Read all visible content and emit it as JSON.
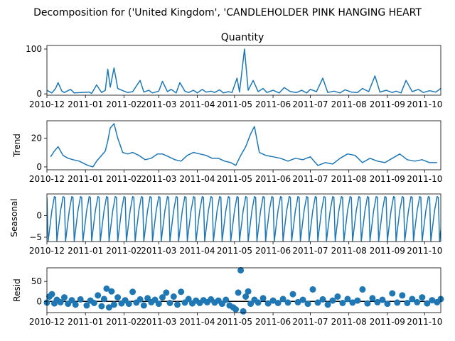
{
  "figure": {
    "suptitle": "Decomposition for ('United Kingdom', 'CANDLEHOLDER PINK HANGING HEART"
  },
  "colors": {
    "line": "#1f77b4",
    "marker": "#1f77b4",
    "zero_line": "#000000",
    "axes": "#000000",
    "background": "#ffffff"
  },
  "chart_data": [
    {
      "type": "line",
      "title": "Quantity",
      "ylabel": "",
      "x_tick_labels": [
        "2010-12",
        "2011-01",
        "2011-02",
        "2011-03",
        "2011-04",
        "2011-05",
        "2011-06",
        "2011-07",
        "2011-08",
        "2011-09",
        "2011-10"
      ],
      "x_range": [
        "2010-12-01",
        "2011-10-14"
      ],
      "ylim": [
        -3,
        108
      ],
      "y_ticks": [
        0,
        100
      ],
      "grid": false,
      "legend": "none",
      "x": [
        "2010-12-01",
        "2010-12-05",
        "2010-12-08",
        "2010-12-10",
        "2010-12-13",
        "2010-12-15",
        "2010-12-20",
        "2010-12-23",
        "2011-01-04",
        "2011-01-06",
        "2011-01-10",
        "2011-01-14",
        "2011-01-17",
        "2011-01-19",
        "2011-01-21",
        "2011-01-24",
        "2011-01-27",
        "2011-02-01",
        "2011-02-04",
        "2011-02-08",
        "2011-02-14",
        "2011-02-17",
        "2011-02-21",
        "2011-02-24",
        "2011-03-01",
        "2011-03-04",
        "2011-03-08",
        "2011-03-11",
        "2011-03-15",
        "2011-03-18",
        "2011-03-22",
        "2011-03-25",
        "2011-03-29",
        "2011-04-01",
        "2011-04-05",
        "2011-04-08",
        "2011-04-12",
        "2011-04-15",
        "2011-04-19",
        "2011-04-22",
        "2011-04-26",
        "2011-04-29",
        "2011-05-03",
        "2011-05-05",
        "2011-05-09",
        "2011-05-12",
        "2011-05-16",
        "2011-05-20",
        "2011-05-24",
        "2011-05-27",
        "2011-06-01",
        "2011-06-06",
        "2011-06-10",
        "2011-06-15",
        "2011-06-20",
        "2011-06-24",
        "2011-06-28",
        "2011-07-01",
        "2011-07-06",
        "2011-07-11",
        "2011-07-15",
        "2011-07-20",
        "2011-07-25",
        "2011-07-29",
        "2011-08-03",
        "2011-08-08",
        "2011-08-12",
        "2011-08-17",
        "2011-08-22",
        "2011-08-26",
        "2011-08-31",
        "2011-09-05",
        "2011-09-08",
        "2011-09-12",
        "2011-09-16",
        "2011-09-21",
        "2011-09-26",
        "2011-09-30",
        "2011-10-05",
        "2011-10-10",
        "2011-10-14"
      ],
      "values": [
        8,
        2,
        12,
        25,
        6,
        3,
        10,
        2,
        4,
        1,
        20,
        3,
        8,
        55,
        15,
        58,
        12,
        6,
        3,
        5,
        30,
        4,
        8,
        2,
        6,
        28,
        5,
        10,
        2,
        25,
        6,
        3,
        8,
        2,
        10,
        4,
        6,
        3,
        9,
        2,
        5,
        3,
        35,
        4,
        100,
        8,
        30,
        5,
        12,
        3,
        8,
        2,
        14,
        5,
        3,
        8,
        2,
        10,
        5,
        35,
        3,
        6,
        2,
        9,
        4,
        3,
        12,
        5,
        40,
        4,
        8,
        3,
        6,
        2,
        30,
        5,
        10,
        3,
        7,
        4,
        12
      ]
    },
    {
      "type": "line",
      "title": "",
      "ylabel": "Trend",
      "x_tick_labels": [
        "2010-12",
        "2011-01",
        "2011-02",
        "2011-03",
        "2011-04",
        "2011-05",
        "2011-06",
        "2011-07",
        "2011-08",
        "2011-09",
        "2011-10"
      ],
      "x_range": [
        "2010-12-01",
        "2011-10-14"
      ],
      "ylim": [
        -2,
        32
      ],
      "y_ticks": [
        0,
        20
      ],
      "grid": false,
      "legend": "none",
      "x": [
        "2010-12-04",
        "2010-12-07",
        "2010-12-10",
        "2010-12-14",
        "2010-12-18",
        "2010-12-22",
        "2010-12-27",
        "2011-01-03",
        "2011-01-07",
        "2011-01-10",
        "2011-01-14",
        "2011-01-17",
        "2011-01-19",
        "2011-01-21",
        "2011-01-24",
        "2011-01-27",
        "2011-01-31",
        "2011-02-04",
        "2011-02-08",
        "2011-02-13",
        "2011-02-18",
        "2011-02-23",
        "2011-02-28",
        "2011-03-04",
        "2011-03-09",
        "2011-03-14",
        "2011-03-19",
        "2011-03-24",
        "2011-03-29",
        "2011-04-03",
        "2011-04-08",
        "2011-04-13",
        "2011-04-18",
        "2011-04-23",
        "2011-04-28",
        "2011-05-02",
        "2011-05-06",
        "2011-05-10",
        "2011-05-14",
        "2011-05-17",
        "2011-05-21",
        "2011-05-26",
        "2011-06-01",
        "2011-06-07",
        "2011-06-13",
        "2011-06-19",
        "2011-06-25",
        "2011-07-01",
        "2011-07-07",
        "2011-07-13",
        "2011-07-19",
        "2011-07-25",
        "2011-07-31",
        "2011-08-06",
        "2011-08-12",
        "2011-08-18",
        "2011-08-24",
        "2011-08-30",
        "2011-09-05",
        "2011-09-11",
        "2011-09-17",
        "2011-09-23",
        "2011-09-29",
        "2011-10-05",
        "2011-10-11"
      ],
      "values": [
        7,
        11,
        14,
        8,
        6,
        5,
        4,
        1,
        0,
        4,
        8,
        11,
        18,
        27,
        30,
        20,
        10,
        9,
        10,
        8,
        5,
        6,
        9,
        9,
        7,
        5,
        4,
        8,
        10,
        9,
        8,
        6,
        6,
        4,
        3,
        1,
        8,
        14,
        23,
        28,
        10,
        8,
        7,
        6,
        4,
        6,
        5,
        7,
        1,
        3,
        2,
        6,
        9,
        8,
        3,
        6,
        4,
        3,
        6,
        9,
        5,
        4,
        5,
        3,
        3
      ]
    },
    {
      "type": "line",
      "title": "",
      "ylabel": "Seasonal",
      "x_tick_labels": [
        "2010-12",
        "2011-01",
        "2011-02",
        "2011-03",
        "2011-04",
        "2011-05",
        "2011-06",
        "2011-07",
        "2011-08",
        "2011-09",
        "2011-10"
      ],
      "x_range": [
        "2010-12-01",
        "2011-10-14"
      ],
      "ylim": [
        -6,
        5
      ],
      "y_ticks": [
        -5,
        0
      ],
      "grid": false,
      "legend": "none",
      "period_days": 7,
      "cycle_pattern": [
        4.2,
        -5.9,
        -3.5,
        -1.2,
        1.2,
        2.7,
        4.4
      ],
      "num_cycles": 46
    },
    {
      "type": "scatter",
      "title": "",
      "ylabel": "Resid",
      "x_tick_labels": [
        "2010-12",
        "2011-01",
        "2011-02",
        "2011-03",
        "2011-04",
        "2011-05",
        "2011-06",
        "2011-07",
        "2011-08",
        "2011-09",
        "2011-10"
      ],
      "x_range": [
        "2010-12-01",
        "2011-10-14"
      ],
      "ylim": [
        -28,
        84
      ],
      "y_ticks": [
        0,
        50
      ],
      "grid": false,
      "legend": "none",
      "zero_line": true,
      "x": [
        "2010-12-01",
        "2010-12-03",
        "2010-12-05",
        "2010-12-07",
        "2010-12-09",
        "2010-12-12",
        "2010-12-15",
        "2010-12-18",
        "2010-12-21",
        "2010-12-24",
        "2010-12-28",
        "2011-01-02",
        "2011-01-05",
        "2011-01-08",
        "2011-01-11",
        "2011-01-14",
        "2011-01-16",
        "2011-01-18",
        "2011-01-20",
        "2011-01-22",
        "2011-01-24",
        "2011-01-27",
        "2011-01-30",
        "2011-02-02",
        "2011-02-05",
        "2011-02-08",
        "2011-02-11",
        "2011-02-14",
        "2011-02-17",
        "2011-02-20",
        "2011-02-23",
        "2011-02-26",
        "2011-03-01",
        "2011-03-04",
        "2011-03-07",
        "2011-03-10",
        "2011-03-13",
        "2011-03-16",
        "2011-03-19",
        "2011-03-22",
        "2011-03-25",
        "2011-03-28",
        "2011-03-31",
        "2011-04-03",
        "2011-04-06",
        "2011-04-09",
        "2011-04-12",
        "2011-04-15",
        "2011-04-18",
        "2011-04-21",
        "2011-04-24",
        "2011-04-27",
        "2011-04-30",
        "2011-05-02",
        "2011-05-04",
        "2011-05-06",
        "2011-05-08",
        "2011-05-10",
        "2011-05-12",
        "2011-05-14",
        "2011-05-17",
        "2011-05-20",
        "2011-05-24",
        "2011-05-28",
        "2011-06-01",
        "2011-06-05",
        "2011-06-09",
        "2011-06-13",
        "2011-06-17",
        "2011-06-21",
        "2011-06-25",
        "2011-06-29",
        "2011-07-03",
        "2011-07-07",
        "2011-07-11",
        "2011-07-15",
        "2011-07-19",
        "2011-07-23",
        "2011-07-27",
        "2011-07-31",
        "2011-08-04",
        "2011-08-08",
        "2011-08-12",
        "2011-08-16",
        "2011-08-20",
        "2011-08-24",
        "2011-08-28",
        "2011-09-01",
        "2011-09-05",
        "2011-09-09",
        "2011-09-13",
        "2011-09-17",
        "2011-09-21",
        "2011-09-25",
        "2011-09-29",
        "2011-10-03",
        "2011-10-07",
        "2011-10-11",
        "2011-10-14"
      ],
      "values": [
        -3,
        12,
        18,
        -5,
        4,
        -2,
        10,
        -6,
        3,
        -8,
        5,
        -10,
        2,
        -4,
        15,
        -12,
        6,
        32,
        -15,
        25,
        -8,
        10,
        -5,
        3,
        -6,
        24,
        -3,
        5,
        -10,
        8,
        -2,
        4,
        -6,
        10,
        22,
        -4,
        12,
        -8,
        24,
        -3,
        6,
        -5,
        2,
        -4,
        3,
        -2,
        5,
        -3,
        2,
        -6,
        4,
        -10,
        -15,
        -20,
        22,
        78,
        -25,
        12,
        25,
        -6,
        4,
        -3,
        8,
        -5,
        2,
        -4,
        6,
        -3,
        18,
        -2,
        4,
        -6,
        30,
        -3,
        5,
        -8,
        2,
        12,
        -4,
        6,
        -3,
        2,
        30,
        -5,
        8,
        -2,
        4,
        -6,
        20,
        -3,
        15,
        -4,
        6,
        -2,
        10,
        -5,
        3,
        -2,
        6
      ]
    }
  ]
}
